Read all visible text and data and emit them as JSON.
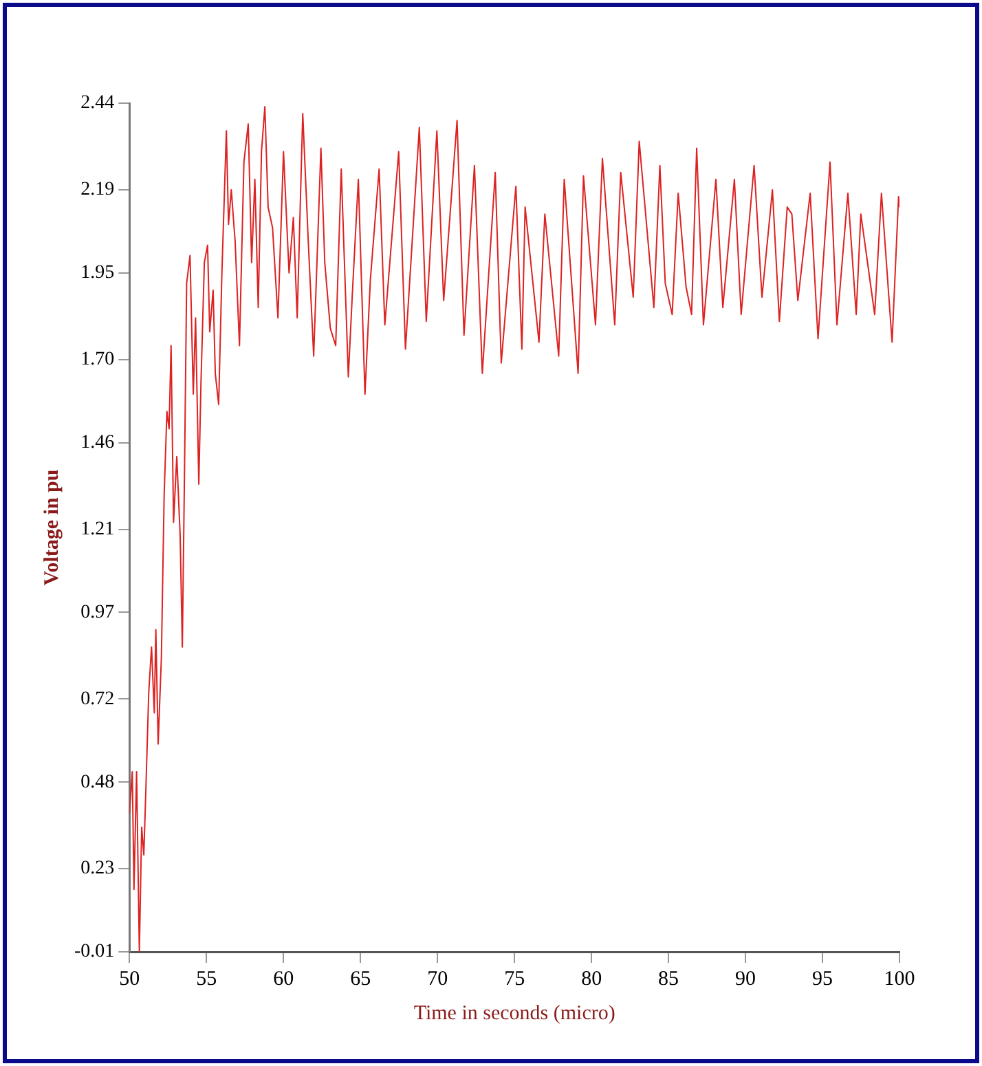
{
  "chart_data": {
    "type": "line",
    "xlabel": "Time in seconds (micro)",
    "ylabel": "Voltage in pu",
    "xlim": [
      50,
      100
    ],
    "xticks": [
      50,
      55,
      60,
      65,
      70,
      75,
      80,
      85,
      90,
      95,
      100
    ],
    "ylim": [
      -0.01,
      2.44
    ],
    "yticks": [
      -0.01,
      0.23,
      0.48,
      0.72,
      0.97,
      1.21,
      1.46,
      {
        "value": 1.7,
        "label": "1.70"
      },
      1.95,
      2.19,
      2.44
    ],
    "grid": false,
    "legend": false,
    "marker": "none",
    "line_style": "solid",
    "series": [
      {
        "color": "#dd2222",
        "x": [
          50.0,
          50.18,
          50.29,
          50.46,
          50.64,
          50.79,
          50.93,
          51.07,
          51.25,
          51.43,
          51.61,
          51.71,
          51.86,
          52.07,
          52.25,
          52.43,
          52.57,
          52.7,
          52.86,
          53.07,
          53.29,
          53.43,
          53.57,
          53.71,
          53.93,
          54.14,
          54.29,
          54.5,
          54.64,
          54.86,
          55.07,
          55.21,
          55.43,
          55.57,
          55.79,
          56.0,
          56.29,
          56.43,
          56.61,
          56.86,
          57.14,
          57.43,
          57.71,
          57.93,
          58.14,
          58.36,
          58.57,
          58.79,
          59.0,
          59.29,
          59.64,
          60.0,
          60.36,
          60.64,
          60.89,
          61.25,
          61.61,
          61.96,
          62.43,
          62.68,
          63.04,
          63.39,
          63.75,
          64.21,
          64.46,
          64.86,
          65.29,
          65.64,
          66.21,
          66.58,
          67.48,
          67.92,
          68.82,
          69.27,
          69.96,
          70.4,
          71.27,
          71.72,
          72.4,
          72.91,
          73.75,
          74.14,
          75.09,
          75.48,
          75.69,
          76.59,
          76.97,
          77.87,
          78.23,
          79.13,
          79.48,
          80.26,
          80.71,
          81.51,
          81.9,
          82.71,
          83.1,
          84.05,
          84.44,
          84.79,
          85.24,
          85.63,
          86.14,
          86.5,
          86.83,
          87.27,
          88.08,
          88.53,
          89.28,
          89.72,
          90.56,
          91.07,
          91.75,
          92.2,
          92.71,
          93.01,
          93.4,
          94.2,
          94.71,
          95.49,
          95.94,
          96.65,
          97.19,
          97.49,
          98.39,
          98.83,
          99.52,
          99.94,
          100.0
        ],
        "values": [
          0.39,
          0.51,
          0.17,
          0.51,
          -0.01,
          0.35,
          0.27,
          0.47,
          0.74,
          0.87,
          0.68,
          0.92,
          0.59,
          0.84,
          1.31,
          1.55,
          1.5,
          1.74,
          1.23,
          1.42,
          1.19,
          0.87,
          1.37,
          1.92,
          2.0,
          1.6,
          1.82,
          1.34,
          1.63,
          1.98,
          2.03,
          1.78,
          1.9,
          1.66,
          1.57,
          1.95,
          2.36,
          2.09,
          2.19,
          2.04,
          1.74,
          2.27,
          2.38,
          1.98,
          2.22,
          1.85,
          2.3,
          2.43,
          2.14,
          2.08,
          1.82,
          2.3,
          1.95,
          2.11,
          1.82,
          2.41,
          2.04,
          1.71,
          2.31,
          1.98,
          1.79,
          1.74,
          2.25,
          1.65,
          1.88,
          2.22,
          1.6,
          1.93,
          2.25,
          1.8,
          2.3,
          1.73,
          2.37,
          1.81,
          2.36,
          1.87,
          2.39,
          1.77,
          2.26,
          1.66,
          2.24,
          1.69,
          2.2,
          1.73,
          2.14,
          1.75,
          2.12,
          1.71,
          2.22,
          1.66,
          2.23,
          1.8,
          2.28,
          1.8,
          2.24,
          1.88,
          2.33,
          1.85,
          2.26,
          1.92,
          1.83,
          2.18,
          1.91,
          1.83,
          2.31,
          1.8,
          2.22,
          1.85,
          2.22,
          1.83,
          2.26,
          1.88,
          2.19,
          1.81,
          2.14,
          2.12,
          1.87,
          2.18,
          1.76,
          2.27,
          1.8,
          2.18,
          1.83,
          2.12,
          1.83,
          2.18,
          1.75,
          2.17,
          2.14
        ]
      }
    ]
  }
}
